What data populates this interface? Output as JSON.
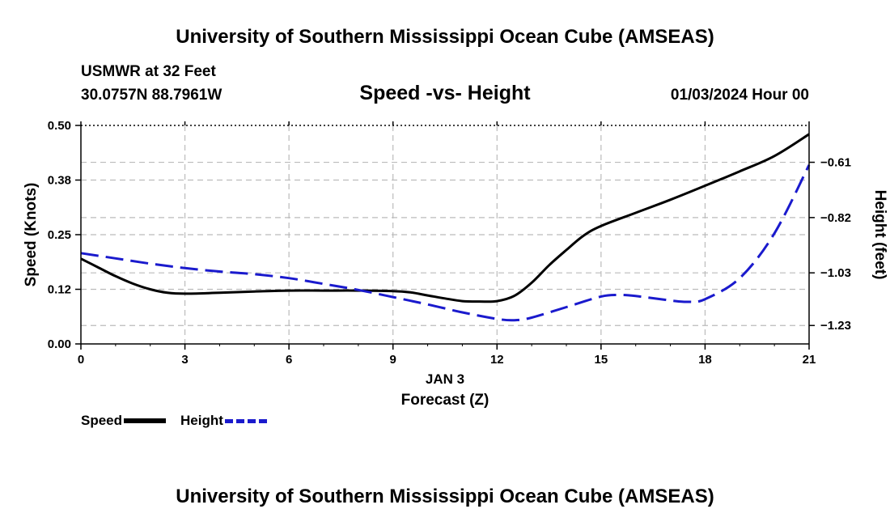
{
  "header": {
    "title": "University of Southern Mississippi Ocean Cube (AMSEAS)",
    "station": "USMWR at 32 Feet",
    "coords": "30.0757N  88.7961W",
    "datetime": "01/03/2024 Hour 00"
  },
  "footer": {
    "title": "University of Southern Mississippi Ocean Cube (AMSEAS)"
  },
  "colors": {
    "speed": "#000000",
    "height": "#1a1acd",
    "grid": "#bbbbbb"
  },
  "chart_data": {
    "type": "line",
    "title": "Speed -vs- Height",
    "xlabel": "Forecast (Z)",
    "xdate": "JAN 3",
    "ylabel": "Speed (Knots)",
    "y2label": "Height (feet)",
    "xlim": [
      0,
      21
    ],
    "ylim": [
      0,
      0.5
    ],
    "y2lim": [
      -1.3,
      -0.47
    ],
    "x_ticks": [
      0,
      3,
      6,
      9,
      12,
      15,
      18,
      21
    ],
    "x_tick_labels": [
      "0",
      "3",
      "6",
      "9",
      "12",
      "15",
      "18",
      "21"
    ],
    "y_ticks": [
      0,
      0.125,
      0.25,
      0.375,
      0.5
    ],
    "y_tick_labels": [
      "0.00",
      "0.12",
      "0.25",
      "0.38",
      "0.50"
    ],
    "y2_ticks": [
      -1.23,
      -1.03,
      -0.82,
      -0.61
    ],
    "y2_tick_labels": [
      "−1.23",
      "−1.03",
      "−0.82",
      "−0.61"
    ],
    "grid": true,
    "series": [
      {
        "name": "Speed",
        "axis": "left",
        "style": "solid",
        "x": [
          0,
          0.5,
          1,
          1.5,
          2,
          2.5,
          3,
          4,
          5,
          6,
          7,
          8,
          9,
          9.5,
          10,
          10.5,
          11,
          11.5,
          12,
          12.5,
          13,
          13.5,
          14,
          14.5,
          15,
          16,
          17,
          18,
          19,
          20,
          21
        ],
        "values": [
          0.195,
          0.175,
          0.155,
          0.138,
          0.125,
          0.117,
          0.115,
          0.117,
          0.12,
          0.122,
          0.122,
          0.122,
          0.121,
          0.118,
          0.111,
          0.104,
          0.098,
          0.097,
          0.098,
          0.11,
          0.14,
          0.18,
          0.215,
          0.248,
          0.27,
          0.3,
          0.33,
          0.362,
          0.395,
          0.43,
          0.48
        ]
      },
      {
        "name": "Height",
        "axis": "right",
        "style": "dashed",
        "x": [
          0,
          1,
          2,
          3,
          4,
          5,
          6,
          7,
          8,
          9,
          10,
          11,
          12,
          12.5,
          13,
          14,
          15,
          15.5,
          16,
          17,
          17.5,
          18,
          19,
          20,
          21
        ],
        "values": [
          -0.955,
          -0.975,
          -0.995,
          -1.012,
          -1.025,
          -1.035,
          -1.05,
          -1.072,
          -1.095,
          -1.122,
          -1.15,
          -1.18,
          -1.205,
          -1.21,
          -1.2,
          -1.16,
          -1.12,
          -1.114,
          -1.118,
          -1.135,
          -1.14,
          -1.13,
          -1.05,
          -0.88,
          -0.62
        ]
      }
    ],
    "legend": [
      "Speed",
      "Height"
    ],
    "legend_position": "bottom-left"
  }
}
